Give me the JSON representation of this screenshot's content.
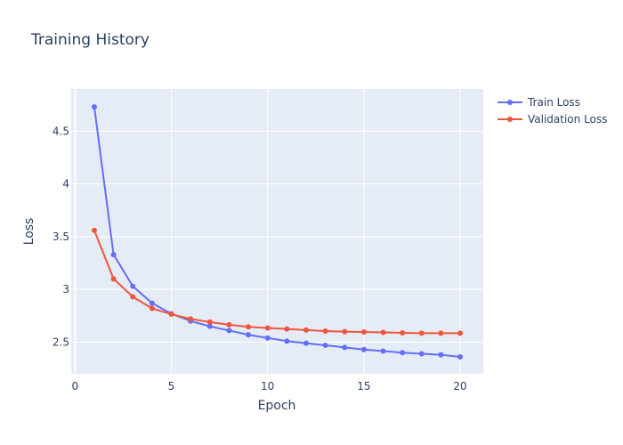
{
  "chart_data": {
    "type": "line",
    "title": "Training History",
    "xlabel": "Epoch",
    "ylabel": "Loss",
    "xlim": [
      -0.2,
      21.2
    ],
    "ylim": [
      2.2,
      4.9
    ],
    "x_ticks": [
      0,
      5,
      10,
      15,
      20
    ],
    "y_ticks": [
      2.5,
      3,
      3.5,
      4,
      4.5
    ],
    "grid": true,
    "legend_position": "top-right",
    "x": [
      1,
      2,
      3,
      4,
      5,
      6,
      7,
      8,
      9,
      10,
      11,
      12,
      13,
      14,
      15,
      16,
      17,
      18,
      19,
      20
    ],
    "series": [
      {
        "name": "Train Loss",
        "color": "#636efa",
        "values": [
          4.73,
          3.33,
          3.03,
          2.87,
          2.77,
          2.7,
          2.65,
          2.61,
          2.57,
          2.54,
          2.51,
          2.49,
          2.47,
          2.45,
          2.43,
          2.415,
          2.4,
          2.39,
          2.38,
          2.36
        ]
      },
      {
        "name": "Validation Loss",
        "color": "#ef553b",
        "values": [
          3.56,
          3.1,
          2.93,
          2.82,
          2.765,
          2.72,
          2.69,
          2.665,
          2.645,
          2.635,
          2.625,
          2.615,
          2.605,
          2.6,
          2.597,
          2.592,
          2.588,
          2.585,
          2.585,
          2.585
        ]
      }
    ]
  },
  "colors": {
    "plot_background": "#e5ecf6",
    "grid": "#ffffff",
    "text": "#2a3f5f"
  }
}
